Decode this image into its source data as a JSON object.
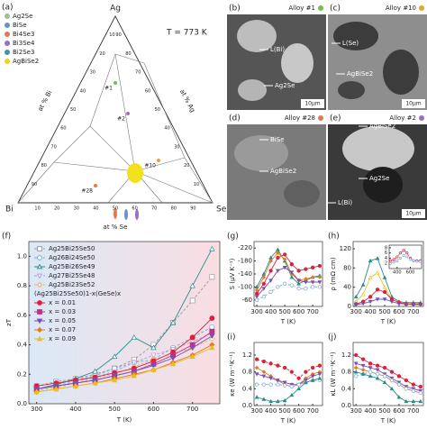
{
  "ternary": {
    "panel": "(a)",
    "vertices": {
      "top": "Ag",
      "left": "Bi",
      "right": "Se"
    },
    "temperature": "T = 773 K",
    "axis_labels": {
      "left": "at % Bi",
      "right": "at % Ag",
      "bottom": "at % Se"
    },
    "ticks": [
      10,
      20,
      30,
      40,
      50,
      60,
      70,
      80,
      90
    ],
    "legend": [
      {
        "name": "Ag2Se",
        "color": "#9fbf8f"
      },
      {
        "name": "BiSe",
        "color": "#6f8fc8"
      },
      {
        "name": "Bi4Se3",
        "color": "#e07a50"
      },
      {
        "name": "Bi3Se4",
        "color": "#9a6fc0"
      },
      {
        "name": "Bi2Se3",
        "color": "#3a9a9a"
      },
      {
        "name": "AgBiSe2",
        "color": "#f2d21e"
      }
    ],
    "alloys": [
      {
        "label": "#1",
        "color": "#6fc04f"
      },
      {
        "label": "#2",
        "color": "#9a6fc0"
      },
      {
        "label": "#10",
        "color": "#e8a13a"
      },
      {
        "label": "#28",
        "color": "#e07a50"
      }
    ]
  },
  "micrographs": [
    {
      "panel": "(b)",
      "alloy": "Alloy #1",
      "dot": "#6fc04f",
      "labels": [
        "L(Bi)",
        "Ag2Se"
      ],
      "scale": "10μm"
    },
    {
      "panel": "(c)",
      "alloy": "Alloy #10",
      "dot": "#e8a13a",
      "labels": [
        "L(Se)",
        "AgBiSe2"
      ],
      "scale": "10μm"
    },
    {
      "panel": "(d)",
      "alloy": "Alloy #28",
      "dot": "#e07a50",
      "labels": [
        "BiSe",
        "AgBiSe2"
      ]
    },
    {
      "panel": "(e)",
      "alloy": "Alloy #2",
      "dot": "#9a6fc0",
      "labels": [
        "AgBiSe2",
        "Ag2Se",
        "L(Bi)"
      ],
      "scale": "10μm"
    }
  ],
  "chart_data": [
    {
      "type": "line",
      "panel": "(f)",
      "x_label": "T (K)",
      "y_label": "zT",
      "legend_subtitle": "(Ag25Bi25Se50)1-x(GeSe)x",
      "x": [
        300,
        350,
        400,
        450,
        500,
        550,
        600,
        650,
        700,
        750
      ],
      "xlim": [
        280,
        770
      ],
      "xticks": [
        300,
        400,
        500,
        600,
        700
      ],
      "ylim": [
        0,
        1.1
      ],
      "yticks": [
        {
          "value": 0,
          "label": "0.0"
        },
        0.2,
        0.4,
        0.6,
        0.8,
        {
          "value": 1,
          "label": "1.0"
        }
      ],
      "series": [
        {
          "name": "Ag25Bi25Se50",
          "color": "#9a9a9a",
          "marker": "square",
          "filled": false,
          "dashed": true,
          "values": [
            0.12,
            0.15,
            0.17,
            0.2,
            0.24,
            0.3,
            0.4,
            0.55,
            0.7,
            0.86
          ]
        },
        {
          "name": "Ag26Bi24Se50",
          "color": "#7fa8d8",
          "marker": "circle",
          "filled": false,
          "dashed": true,
          "values": [
            0.1,
            0.13,
            0.16,
            0.19,
            0.24,
            0.28,
            0.3,
            0.38,
            0.45,
            0.52
          ]
        },
        {
          "name": "Ag25Bi26Se49",
          "color": "#2a8c8c",
          "marker": "triangle",
          "filled": false,
          "dashed": false,
          "values": [
            0.1,
            0.13,
            0.17,
            0.22,
            0.32,
            0.45,
            0.38,
            0.55,
            0.8,
            1.05
          ]
        },
        {
          "name": "Ag27Bi25Se48",
          "color": "#b39ddb",
          "marker": "triangle-down",
          "filled": false,
          "dashed": true,
          "values": [
            0.1,
            0.12,
            0.15,
            0.18,
            0.22,
            0.28,
            0.33,
            0.37,
            0.42,
            0.48
          ]
        },
        {
          "name": "Ag25Bi23Se52",
          "color": "#e8b070",
          "marker": "diamond",
          "filled": false,
          "dashed": true,
          "values": [
            0.09,
            0.11,
            0.14,
            0.17,
            0.2,
            0.25,
            0.3,
            0.34,
            0.38,
            0.44
          ]
        },
        {
          "name": "x = 0.01",
          "color": "#e0203a",
          "marker": "circle",
          "filled": true,
          "dashed": false,
          "values": [
            0.12,
            0.14,
            0.16,
            0.18,
            0.21,
            0.24,
            0.29,
            0.35,
            0.45,
            0.58
          ]
        },
        {
          "name": "x = 0.03",
          "color": "#c0308a",
          "marker": "square",
          "filled": true,
          "dashed": false,
          "values": [
            0.1,
            0.12,
            0.14,
            0.16,
            0.19,
            0.22,
            0.27,
            0.33,
            0.4,
            0.49
          ]
        },
        {
          "name": "x = 0.05",
          "color": "#7a4fb0",
          "marker": "triangle-down",
          "filled": true,
          "dashed": false,
          "values": [
            0.1,
            0.12,
            0.14,
            0.16,
            0.19,
            0.22,
            0.26,
            0.31,
            0.38,
            0.46
          ]
        },
        {
          "name": "x = 0.07",
          "color": "#e07a20",
          "marker": "diamond",
          "filled": true,
          "dashed": false,
          "values": [
            0.08,
            0.1,
            0.12,
            0.14,
            0.17,
            0.2,
            0.23,
            0.28,
            0.33,
            0.4
          ]
        },
        {
          "name": "x = 0.09",
          "color": "#e8c020",
          "marker": "triangle",
          "filled": true,
          "dashed": false,
          "values": [
            0.08,
            0.1,
            0.12,
            0.14,
            0.16,
            0.19,
            0.23,
            0.27,
            0.32,
            0.38
          ]
        }
      ]
    },
    {
      "type": "line",
      "panel": "(g)",
      "x_label": "T (K)",
      "y_label": "S (μV K⁻¹)",
      "x": [
        300,
        350,
        400,
        450,
        500,
        550,
        600,
        650,
        700,
        750
      ],
      "xlim": [
        280,
        770
      ],
      "xticks": [
        300,
        400,
        500,
        600,
        700
      ],
      "ylim": [
        -40,
        -240
      ],
      "yticks": [
        -220,
        -180,
        -140,
        -100,
        -60
      ],
      "series": [
        {
          "color": "#2a8c8c",
          "marker": "triangle",
          "filled": true,
          "dashed": false,
          "values": [
            -100,
            -140,
            -190,
            -215,
            -180,
            -130,
            -110,
            -120,
            -130,
            -135
          ]
        },
        {
          "color": "#e0203a",
          "marker": "circle",
          "filled": true,
          "dashed": false,
          "values": [
            -80,
            -110,
            -150,
            -190,
            -200,
            -170,
            -150,
            -155,
            -160,
            -165
          ]
        },
        {
          "color": "#e07a20",
          "marker": "diamond",
          "filled": true,
          "dashed": false,
          "values": [
            -90,
            -130,
            -180,
            -205,
            -185,
            -140,
            -120,
            -125,
            -130,
            -130
          ]
        },
        {
          "color": "#7a4fb0",
          "marker": "triangle-down",
          "filled": true,
          "dashed": false,
          "values": [
            -70,
            -95,
            -120,
            -150,
            -160,
            -145,
            -120,
            -115,
            -115,
            -115
          ]
        },
        {
          "color": "#7fa8d8",
          "marker": "circle",
          "filled": false,
          "dashed": true,
          "values": [
            -60,
            -70,
            -85,
            -100,
            -110,
            -105,
            -95,
            -95,
            -100,
            -100
          ]
        }
      ]
    },
    {
      "type": "line",
      "panel": "(h)",
      "x_label": "T (K)",
      "y_label": "ρ (mΩ cm)",
      "x": [
        300,
        350,
        400,
        450,
        500,
        550,
        600,
        650,
        700,
        750
      ],
      "xlim": [
        280,
        770
      ],
      "xticks": [
        300,
        400,
        500,
        600,
        700
      ],
      "ylim": [
        0,
        135
      ],
      "yticks": [
        0,
        40,
        80,
        120
      ],
      "series": [
        {
          "color": "#2a8c8c",
          "marker": "triangle",
          "filled": true,
          "dashed": false,
          "values": [
            20,
            45,
            95,
            100,
            60,
            20,
            10,
            8,
            8,
            8
          ]
        },
        {
          "color": "#e8c020",
          "marker": "triangle",
          "filled": false,
          "dashed": false,
          "values": [
            10,
            25,
            60,
            70,
            40,
            15,
            8,
            6,
            6,
            6
          ]
        },
        {
          "color": "#e0203a",
          "marker": "circle",
          "filled": true,
          "dashed": false,
          "values": [
            5,
            10,
            20,
            35,
            30,
            15,
            8,
            5,
            5,
            5
          ]
        },
        {
          "color": "#7a4fb0",
          "marker": "triangle-down",
          "filled": true,
          "dashed": false,
          "values": [
            4,
            6,
            10,
            15,
            15,
            10,
            6,
            5,
            4,
            4
          ]
        }
      ]
    },
    {
      "type": "line",
      "inset": true,
      "x": [
        300,
        350,
        400,
        450,
        500,
        550,
        600,
        650,
        700,
        750
      ],
      "xlim": [
        280,
        770
      ],
      "xticks": [
        400,
        600
      ],
      "ylim": [
        0,
        9
      ],
      "yticks": [
        2,
        4,
        6,
        8
      ],
      "series": [
        {
          "color": "#e0203a",
          "marker": "circle",
          "filled": false,
          "dashed": true,
          "values": [
            3,
            3.5,
            4.5,
            6,
            7,
            6,
            4,
            3,
            3,
            3
          ]
        },
        {
          "color": "#7fa8d8",
          "marker": "circle",
          "filled": false,
          "dashed": true,
          "values": [
            2,
            2.5,
            3,
            4,
            5,
            4.5,
            3.5,
            3,
            2.8,
            2.8
          ]
        }
      ]
    },
    {
      "type": "line",
      "panel": "(i)",
      "x_label": "T (K)",
      "y_label": "κe (W m⁻¹K⁻¹)",
      "x": [
        300,
        350,
        400,
        450,
        500,
        550,
        600,
        650,
        700,
        750
      ],
      "xlim": [
        280,
        770
      ],
      "xticks": [
        300,
        400,
        500,
        600,
        700
      ],
      "ylim": [
        0,
        1.5
      ],
      "yticks": [
        {
          "value": 0,
          "label": "0.0"
        },
        0.4,
        0.8,
        1.2
      ],
      "series": [
        {
          "color": "#e0203a",
          "marker": "circle",
          "filled": true,
          "dashed": true,
          "values": [
            1.1,
            1.05,
            1,
            0.95,
            0.9,
            0.8,
            0.65,
            0.8,
            0.9,
            0.95
          ]
        },
        {
          "color": "#e07a20",
          "marker": "diamond",
          "filled": true,
          "dashed": false,
          "values": [
            0.9,
            0.8,
            0.7,
            0.6,
            0.5,
            0.45,
            0.5,
            0.65,
            0.75,
            0.8
          ]
        },
        {
          "color": "#7a4fb0",
          "marker": "triangle-down",
          "filled": true,
          "dashed": false,
          "values": [
            0.75,
            0.7,
            0.65,
            0.6,
            0.55,
            0.5,
            0.5,
            0.6,
            0.7,
            0.75
          ]
        },
        {
          "color": "#7fa8d8",
          "marker": "circle",
          "filled": false,
          "dashed": true,
          "values": [
            0.5,
            0.5,
            0.5,
            0.5,
            0.48,
            0.45,
            0.5,
            0.55,
            0.6,
            0.6
          ]
        },
        {
          "color": "#2a8c8c",
          "marker": "triangle",
          "filled": true,
          "dashed": false,
          "values": [
            0.2,
            0.15,
            0.1,
            0.1,
            0.12,
            0.25,
            0.4,
            0.55,
            0.6,
            0.65
          ]
        }
      ]
    },
    {
      "type": "line",
      "panel": "(j)",
      "x_label": "T (K)",
      "y_label": "κL (W m⁻¹K⁻¹)",
      "x": [
        300,
        350,
        400,
        450,
        500,
        550,
        600,
        650,
        700,
        750
      ],
      "xlim": [
        280,
        770
      ],
      "xticks": [
        300,
        400,
        500,
        600,
        700
      ],
      "ylim": [
        0,
        1.5
      ],
      "yticks": [
        {
          "value": 0,
          "label": "0.0"
        },
        0.4,
        0.8,
        1.2
      ],
      "series": [
        {
          "color": "#e0203a",
          "marker": "circle",
          "filled": true,
          "dashed": false,
          "values": [
            1.2,
            1.1,
            1,
            0.95,
            0.9,
            0.8,
            0.7,
            0.6,
            0.5,
            0.45
          ]
        },
        {
          "color": "#7a4fb0",
          "marker": "triangle-down",
          "filled": true,
          "dashed": false,
          "values": [
            1,
            0.95,
            0.9,
            0.85,
            0.75,
            0.65,
            0.55,
            0.45,
            0.4,
            0.35
          ]
        },
        {
          "color": "#e07a20",
          "marker": "diamond",
          "filled": true,
          "dashed": false,
          "values": [
            0.9,
            0.85,
            0.8,
            0.75,
            0.7,
            0.6,
            0.5,
            0.4,
            0.35,
            0.3
          ]
        },
        {
          "color": "#7fa8d8",
          "marker": "circle",
          "filled": false,
          "dashed": true,
          "values": [
            0.7,
            0.75,
            0.8,
            0.75,
            0.7,
            0.6,
            0.5,
            0.4,
            0.35,
            0.3
          ]
        },
        {
          "color": "#2a8c8c",
          "marker": "triangle",
          "filled": true,
          "dashed": false,
          "values": [
            0.8,
            0.75,
            0.7,
            0.65,
            0.55,
            0.4,
            0.2,
            0.1,
            0.1,
            0.1
          ]
        }
      ]
    }
  ]
}
